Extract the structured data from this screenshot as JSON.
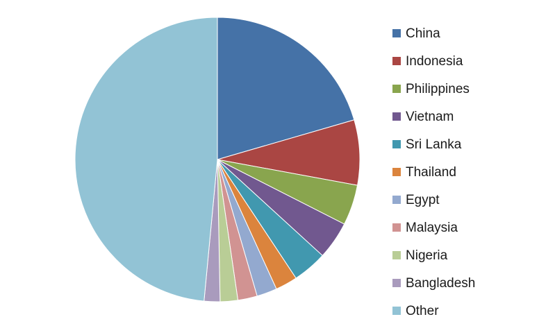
{
  "chart_data": {
    "type": "pie",
    "title": "",
    "legend_position": "right",
    "slices": [
      {
        "label": "China",
        "value": 20.5,
        "color": "#4572A7"
      },
      {
        "label": "Indonesia",
        "value": 7.4,
        "color": "#AA4643"
      },
      {
        "label": "Philippines",
        "value": 4.6,
        "color": "#89A54E"
      },
      {
        "label": "Vietnam",
        "value": 4.3,
        "color": "#71588F"
      },
      {
        "label": "Sri Lanka",
        "value": 3.9,
        "color": "#4198AF"
      },
      {
        "label": "Thailand",
        "value": 2.5,
        "color": "#DB843D"
      },
      {
        "label": "Egypt",
        "value": 2.3,
        "color": "#93A9CF"
      },
      {
        "label": "Malaysia",
        "value": 2.2,
        "color": "#D19392"
      },
      {
        "label": "Nigeria",
        "value": 2.0,
        "color": "#B9CD96"
      },
      {
        "label": "Bangladesh",
        "value": 1.8,
        "color": "#A99BBD"
      },
      {
        "label": "Other",
        "value": 48.5,
        "color": "#92C3D5"
      }
    ]
  }
}
